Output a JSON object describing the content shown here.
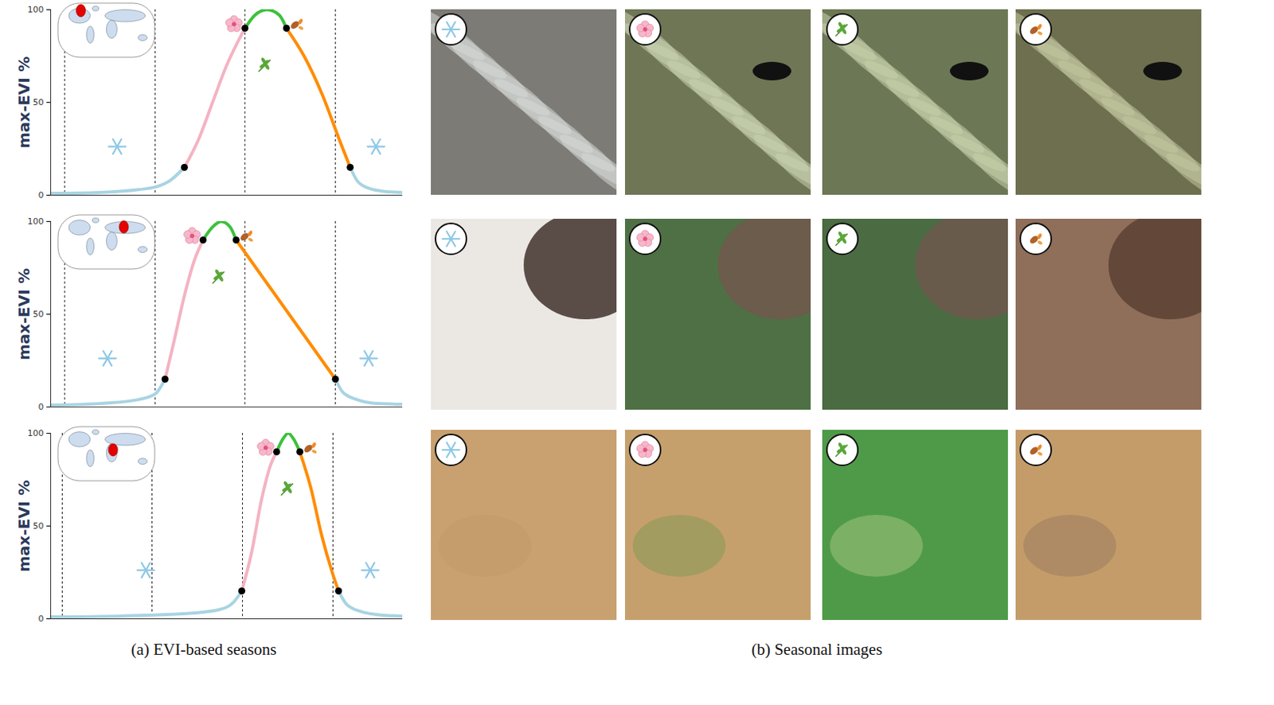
{
  "chart_data": [
    {
      "type": "line",
      "ylabel": "max-EVI %",
      "xlim": [
        0,
        100
      ],
      "ylim": [
        0,
        100
      ],
      "yticks": [
        0,
        50,
        100
      ],
      "tick_labels": "y",
      "location": [
        -95,
        65
      ],
      "vlines": [
        4,
        29.7,
        55.2,
        80.9
      ],
      "series": [
        {
          "color": "#a8d4e2",
          "x": [
            0,
            14,
            25,
            30,
            34,
            38
          ],
          "values": [
            1,
            1.5,
            3,
            4.5,
            8,
            15
          ]
        },
        {
          "color": "#f4b3c2",
          "x": [
            38,
            42,
            46,
            50,
            53,
            55.2
          ],
          "values": [
            15,
            30,
            50,
            70,
            82,
            90
          ]
        },
        {
          "color": "#3cc13b",
          "x": [
            55.2,
            58,
            61.5,
            65,
            67
          ],
          "values": [
            90,
            97,
            100,
            97,
            90
          ]
        },
        {
          "color": "#ff8c00",
          "x": [
            67,
            72,
            77,
            82,
            85.1
          ],
          "values": [
            90,
            75,
            55,
            30,
            15
          ]
        },
        {
          "color": "#a8d4e2",
          "x": [
            85.1,
            87,
            90,
            95,
            100
          ],
          "values": [
            15,
            8,
            4,
            2,
            1.5
          ]
        }
      ]
    },
    {
      "type": "line",
      "ylabel": "max-EVI %",
      "xlim": [
        0,
        100
      ],
      "ylim": [
        0,
        100
      ],
      "yticks": [
        0,
        50,
        100
      ],
      "tick_labels": "y",
      "location": [
        65,
        50
      ],
      "vlines": [
        4,
        29.7,
        55.2,
        80.9
      ],
      "series": [
        {
          "color": "#a8d4e2",
          "x": [
            0,
            15,
            25,
            29.7,
            32.5
          ],
          "values": [
            1,
            2,
            4,
            7,
            15
          ]
        },
        {
          "color": "#f4b3c2",
          "x": [
            32.5,
            35,
            38,
            41,
            43.3
          ],
          "values": [
            15,
            35,
            60,
            80,
            90
          ]
        },
        {
          "color": "#3cc13b",
          "x": [
            43.3,
            46,
            48.4,
            51,
            52.7
          ],
          "values": [
            90,
            97,
            100,
            97,
            90
          ]
        },
        {
          "color": "#ff8c00",
          "x": [
            52.7,
            80.9
          ],
          "values": [
            90,
            15
          ]
        },
        {
          "color": "#a8d4e2",
          "x": [
            80.9,
            83,
            87,
            92,
            100
          ],
          "values": [
            15,
            8,
            4,
            2,
            1.5
          ]
        }
      ]
    },
    {
      "type": "line",
      "ylabel": "max-EVI %",
      "xlim": [
        0,
        100
      ],
      "ylim": [
        0,
        100
      ],
      "yticks": [
        0,
        50,
        100
      ],
      "tick_labels": "y",
      "location": [
        25,
        13
      ],
      "vlines": [
        3.3,
        28.8,
        54.5,
        80.2
      ],
      "series": [
        {
          "color": "#a8d4e2",
          "x": [
            0,
            20,
            28.8,
            40,
            48,
            52,
            54.3
          ],
          "values": [
            1,
            1.5,
            2,
            3,
            5,
            9,
            15
          ]
        },
        {
          "color": "#f4b3c2",
          "x": [
            54.3,
            57,
            60,
            62.5,
            64.2
          ],
          "values": [
            15,
            35,
            65,
            83,
            90
          ]
        },
        {
          "color": "#3cc13b",
          "x": [
            64.2,
            66,
            67.5,
            69,
            70.8
          ],
          "values": [
            90,
            97,
            100,
            97,
            90
          ]
        },
        {
          "color": "#ff8c00",
          "x": [
            70.8,
            74,
            77,
            80,
            81.8
          ],
          "values": [
            90,
            70,
            45,
            25,
            15
          ]
        },
        {
          "color": "#a8d4e2",
          "x": [
            81.8,
            84,
            88,
            94,
            100
          ],
          "values": [
            15,
            8,
            4,
            2,
            1.5
          ]
        }
      ]
    }
  ],
  "captions": [
    "(a) EVI-based seasons",
    "(b) Seasonal images"
  ]
}
